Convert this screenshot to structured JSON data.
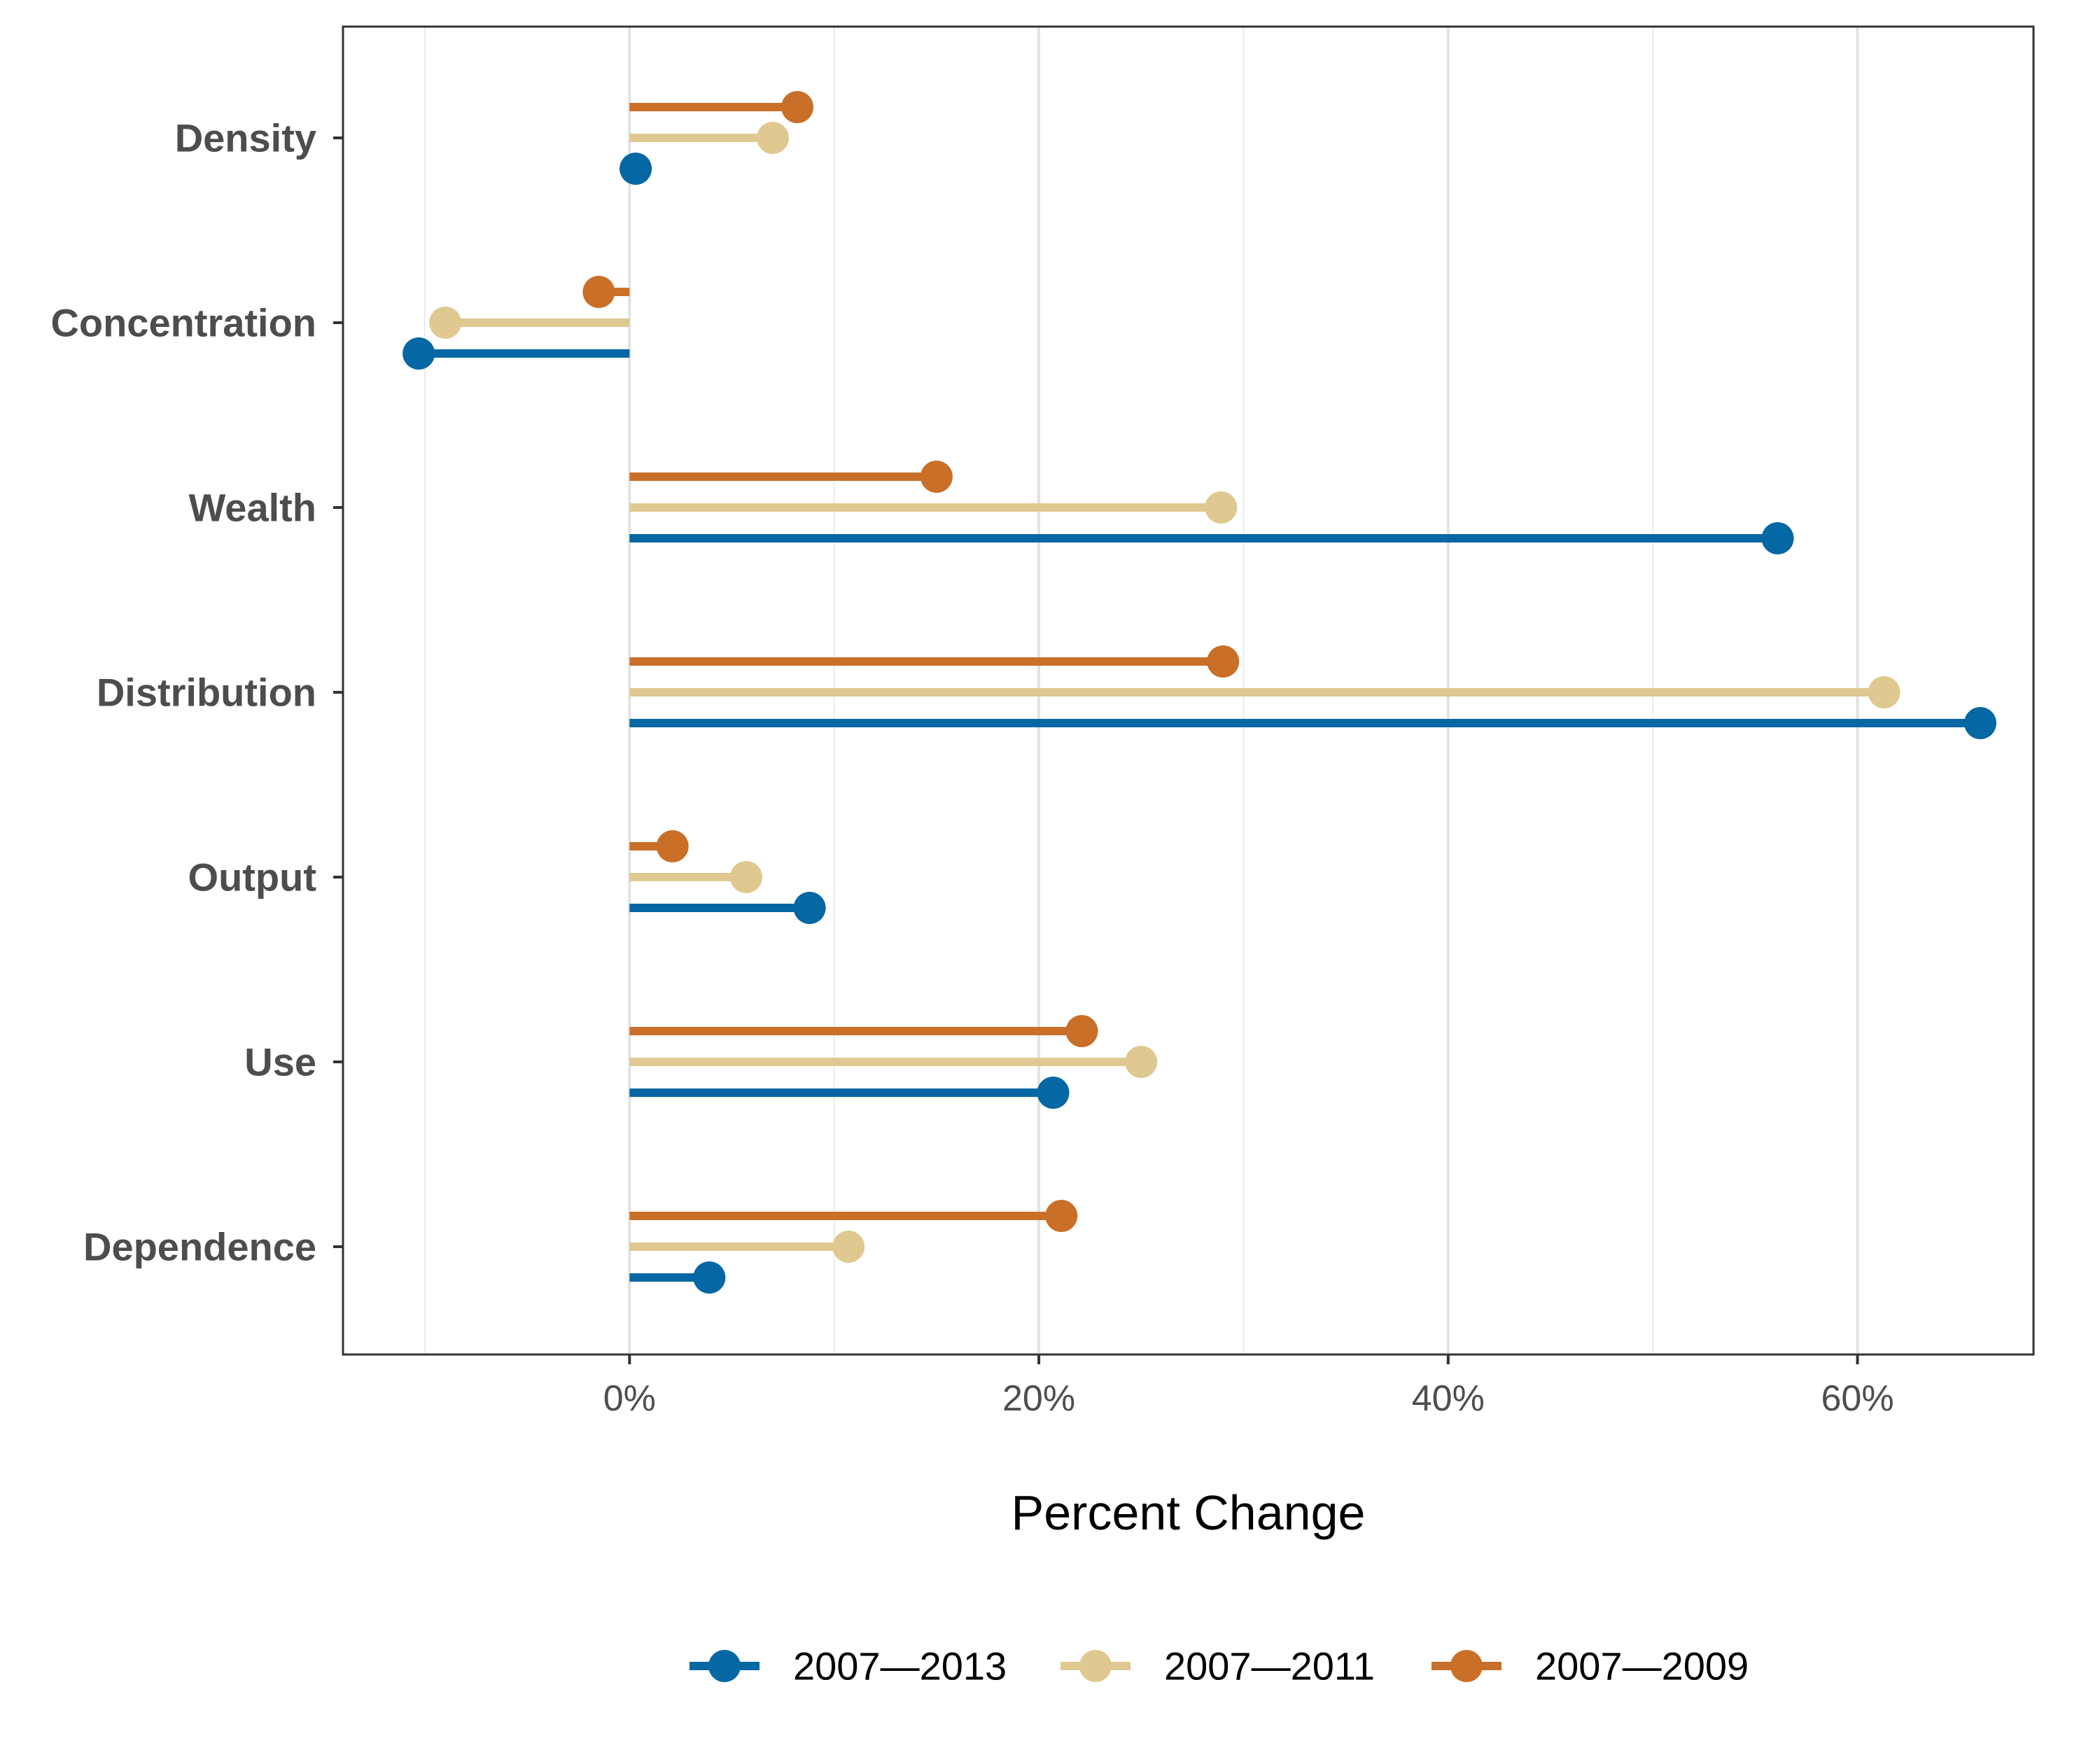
{
  "chart_data": {
    "type": "lollipop",
    "orientation": "horizontal",
    "categories": [
      "Density",
      "Concentration",
      "Wealth",
      "Distribution",
      "Output",
      "Use",
      "Dependence"
    ],
    "series": [
      {
        "name": "2007—2009",
        "color": "#c96f28",
        "values": [
          8.2,
          -1.5,
          15.0,
          29.0,
          2.1,
          22.1,
          21.1
        ]
      },
      {
        "name": "2007—2011",
        "color": "#dfc990",
        "values": [
          7.0,
          -9.0,
          28.9,
          61.3,
          5.7,
          25.0,
          10.7
        ]
      },
      {
        "name": "2007—2013",
        "color": "#0567a3",
        "values": [
          0.3,
          -10.3,
          56.1,
          66.0,
          8.8,
          20.7,
          3.9
        ]
      }
    ],
    "legend_order": [
      "2007—2013",
      "2007—2011",
      "2007—2009"
    ],
    "x_ticks": [
      0,
      20,
      40,
      60
    ],
    "x_tick_labels": [
      "0%",
      "20%",
      "40%",
      "60%"
    ],
    "xlim": [
      -14,
      68.6
    ],
    "xlabel": "Percent Change",
    "ylabel": "",
    "title": "",
    "grid": true,
    "legend_position": "bottom"
  }
}
